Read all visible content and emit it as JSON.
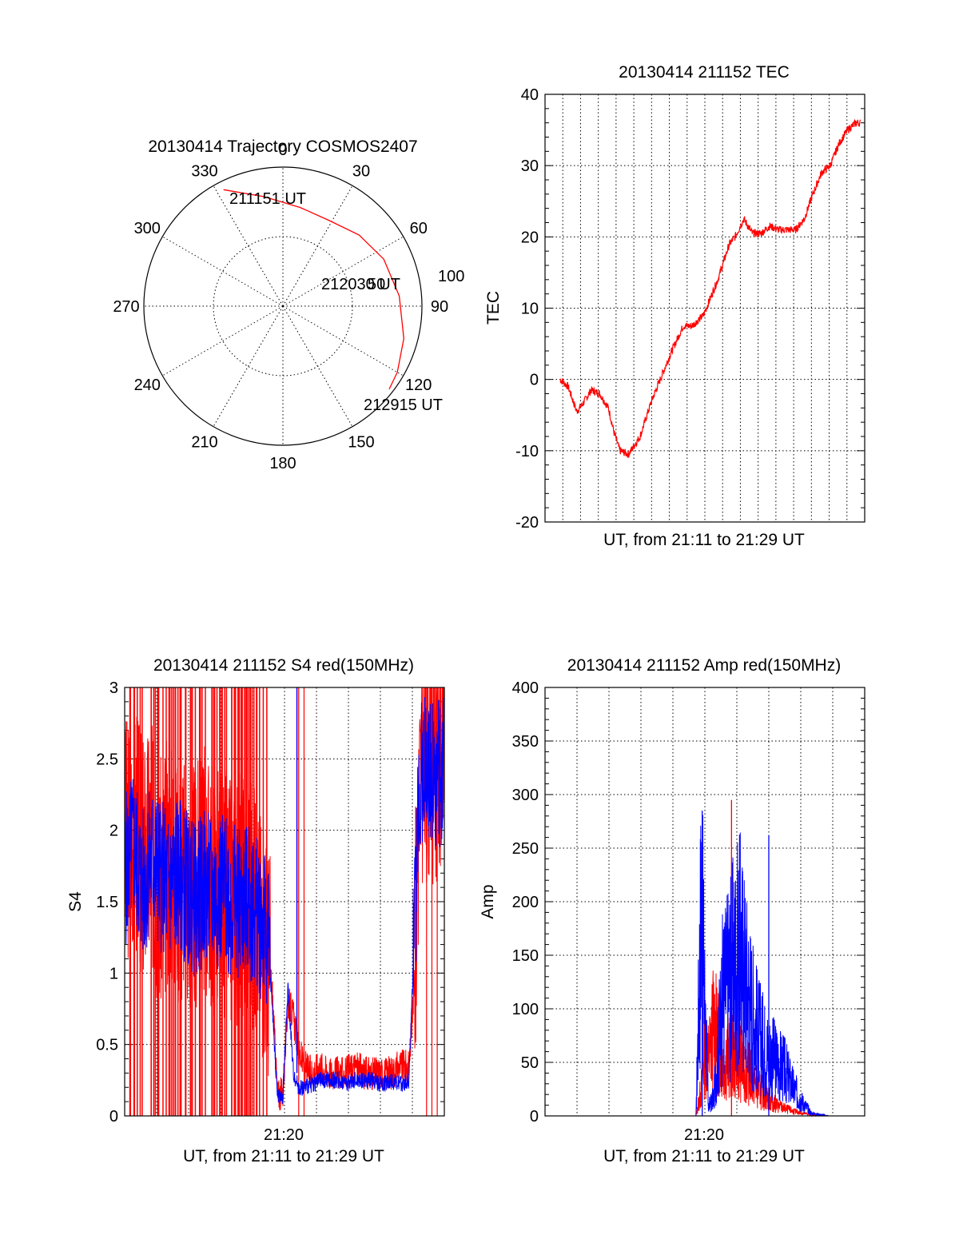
{
  "polar": {
    "title": "20130414 Trajectory COSMOS2407",
    "azimuth_labels": [
      "0",
      "30",
      "60",
      "90",
      "120",
      "150",
      "180",
      "210",
      "240",
      "270",
      "300",
      "330"
    ],
    "ring_label": "100",
    "start_label": "211151 UT",
    "mid_label": "212030 UT",
    "mid_label_overlap": "50",
    "end_label": "212915 UT",
    "trace_color": "#ff0000",
    "trajectory_polar": [
      [
        333,
        94
      ],
      [
        350,
        80
      ],
      [
        10,
        72
      ],
      [
        28,
        70
      ],
      [
        47,
        75
      ],
      [
        65,
        80
      ],
      [
        85,
        84
      ],
      [
        105,
        90
      ],
      [
        120,
        95
      ],
      [
        128,
        97
      ]
    ]
  },
  "tec": {
    "title": "20130414 211152 TEC",
    "ylabel": "TEC",
    "xlabel": "UT, from 21:11 to 21:29 UT",
    "yticks": [
      "40",
      "30",
      "20",
      "10",
      "0",
      "-10",
      "-20"
    ]
  },
  "s4": {
    "title": "20130414 211152 S4 red(150MHz)",
    "ylabel": "S4",
    "xlabel": "UT, from 21:11 to 21:29 UT",
    "xtick": "21:20",
    "yticks": [
      "3",
      "2.5",
      "2",
      "1.5",
      "1",
      "0.5",
      "0"
    ]
  },
  "amp": {
    "title": "20130414 211152 Amp red(150MHz)",
    "ylabel": "Amp",
    "xlabel": "UT, from 21:11 to 21:29 UT",
    "xtick": "21:20",
    "yticks": [
      "400",
      "350",
      "300",
      "250",
      "200",
      "150",
      "100",
      "50",
      "0"
    ]
  },
  "chart_data": [
    {
      "type": "scatter",
      "title": "20130414 Trajectory COSMOS2407",
      "coordinates": "polar (azimuth deg, radial)",
      "points": [
        [
          333,
          94
        ],
        [
          350,
          80
        ],
        [
          10,
          72
        ],
        [
          28,
          70
        ],
        [
          47,
          75
        ],
        [
          65,
          80
        ],
        [
          85,
          84
        ],
        [
          105,
          90
        ],
        [
          120,
          95
        ],
        [
          128,
          97
        ]
      ],
      "annotations": [
        "211151 UT",
        "212030 UT",
        "212915 UT"
      ],
      "color": "#ff0000"
    },
    {
      "type": "line",
      "title": "20130414 211152 TEC",
      "xlabel": "UT, from 21:11 to 21:29 UT",
      "ylabel": "TEC",
      "xlim": [
        "21:11",
        "21:29"
      ],
      "ylim": [
        -20,
        40
      ],
      "grid": true,
      "x": [
        "21:11:52",
        "21:12:20",
        "21:12:50",
        "21:13:10",
        "21:13:40",
        "21:14:10",
        "21:14:40",
        "21:15:00",
        "21:15:20",
        "21:15:50",
        "21:16:30",
        "21:17:10",
        "21:17:40",
        "21:18:20",
        "21:19:00",
        "21:19:30",
        "21:20:10",
        "21:20:30",
        "21:21:00",
        "21:21:40",
        "21:22:00",
        "21:22:30",
        "21:23:00",
        "21:23:30",
        "21:24:00",
        "21:24:30",
        "21:25:00",
        "21:25:30",
        "21:26:00",
        "21:26:30",
        "21:27:00",
        "21:27:30",
        "21:28:00",
        "21:28:30",
        "21:29:00",
        "21:29:15"
      ],
      "series": [
        {
          "values": [
            0,
            -1,
            -4.5,
            -3.5,
            -1.5,
            -2,
            -4,
            -7.5,
            -10,
            -10.5,
            -8,
            -3,
            0,
            4,
            7.5,
            7.5,
            9,
            11,
            14,
            19,
            20,
            22.5,
            20.5,
            20.5,
            21.5,
            21,
            21,
            21,
            22.5,
            26,
            29,
            30,
            33,
            35,
            36,
            36
          ],
          "color": "#ff0000"
        }
      ]
    },
    {
      "type": "line",
      "title": "20130414 211152 S4 red(150MHz)",
      "xlabel": "UT, from 21:11 to 21:29 UT",
      "ylabel": "S4",
      "xlim": [
        "21:11",
        "21:29"
      ],
      "ylim": [
        0,
        3
      ],
      "grid": true,
      "x_minutes": [
        0,
        0.5,
        1,
        1.5,
        2,
        2.5,
        3,
        3.5,
        4,
        4.5,
        5,
        5.5,
        6,
        6.5,
        7,
        7.5,
        8,
        8.3,
        8.6,
        8.9,
        9.2,
        9.5,
        9.8,
        10.1,
        10.5,
        11,
        11.5,
        12,
        12.5,
        13,
        13.5,
        14,
        14.5,
        15,
        15.5,
        16,
        16.3,
        16.6,
        17,
        17.5,
        18
      ],
      "series": [
        {
          "values": [
            1.9,
            2.1,
            1.8,
            1.9,
            1.6,
            1.8,
            1.7,
            1.6,
            1.6,
            1.7,
            1.6,
            1.6,
            1.5,
            1.5,
            1.6,
            1.4,
            1.2,
            0.9,
            0.15,
            0.15,
            0.8,
            0.7,
            0.45,
            0.35,
            0.3,
            0.35,
            0.3,
            0.3,
            0.3,
            0.35,
            0.3,
            0.3,
            0.3,
            0.3,
            0.35,
            0.35,
            0.9,
            2.3,
            2.5,
            2.4,
            2.6
          ],
          "color": "#ff0000"
        },
        {
          "values": [
            1.7,
            1.9,
            1.6,
            1.8,
            1.7,
            1.6,
            1.7,
            1.6,
            1.5,
            1.6,
            1.55,
            1.6,
            1.5,
            1.5,
            1.5,
            1.4,
            1.3,
            0.8,
            0.15,
            0.12,
            0.9,
            0.3,
            0.2,
            0.2,
            0.22,
            0.25,
            0.25,
            0.25,
            0.23,
            0.25,
            0.25,
            0.25,
            0.22,
            0.25,
            0.22,
            0.25,
            1.2,
            2.4,
            2.5,
            2.3,
            2.5
          ],
          "color": "#0000ff"
        }
      ],
      "xtick": "21:20"
    },
    {
      "type": "line",
      "title": "20130414 211152 Amp red(150MHz)",
      "xlabel": "UT, from 21:11 to 21:29 UT",
      "ylabel": "Amp",
      "xlim": [
        "21:11",
        "21:29"
      ],
      "ylim": [
        0,
        400
      ],
      "grid": true,
      "x_minutes": [
        0,
        2,
        4,
        6,
        8,
        8.5,
        8.8,
        9.0,
        9.2,
        9.5,
        10,
        10.5,
        11,
        11.5,
        12,
        12.5,
        13,
        13.5,
        14,
        14.5,
        15,
        16,
        18
      ],
      "series": [
        {
          "values": [
            0,
            0,
            0,
            0,
            0,
            0,
            30,
            80,
            60,
            100,
            60,
            70,
            60,
            45,
            30,
            20,
            12,
            8,
            5,
            3,
            1,
            0,
            0
          ],
          "color": "#ff0000"
        },
        {
          "values": [
            0,
            0,
            0,
            0,
            0,
            0,
            240,
            120,
            10,
            20,
            130,
            160,
            180,
            130,
            90,
            70,
            60,
            50,
            30,
            15,
            3,
            0,
            0
          ],
          "color": "#0000ff"
        }
      ],
      "xtick": "21:20"
    }
  ]
}
